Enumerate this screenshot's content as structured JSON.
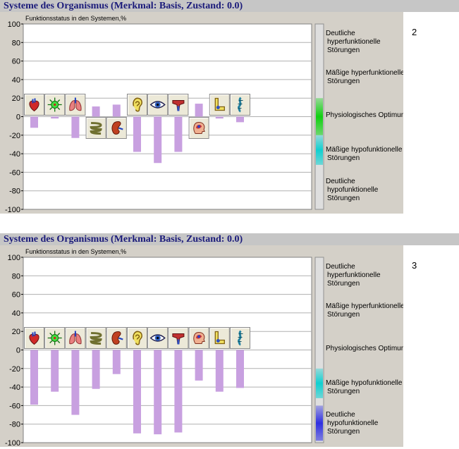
{
  "panels": [
    {
      "title": "Systeme des Organismus  (Merkmal:  Basis, Zustand:  0.0)",
      "number": "2",
      "chart_data": {
        "type": "bar",
        "ylabel": "Funktionsstatus in den Systemen,%",
        "ylim": [
          -100,
          100
        ],
        "yticks": [
          100,
          80,
          60,
          40,
          20,
          0,
          -20,
          -40,
          -60,
          -80,
          -100
        ],
        "grid": true,
        "values": [
          -12,
          -2,
          -23,
          11,
          13,
          -38,
          -50,
          -38,
          14,
          -2,
          -6
        ],
        "icon_offsets": [
          0,
          0,
          0,
          1,
          1,
          0,
          0,
          0,
          1,
          0,
          0
        ],
        "indicator": {
          "bands": [
            "green",
            "cyan"
          ]
        }
      }
    },
    {
      "title": "Systeme des Organismus  (Merkmal:  Basis, Zustand:  0.0)",
      "number": "3",
      "chart_data": {
        "type": "bar",
        "ylabel": "Funktionsstatus in den Systemen,%",
        "ylim": [
          -100,
          100
        ],
        "yticks": [
          100,
          80,
          60,
          40,
          20,
          0,
          -20,
          -40,
          -60,
          -80,
          -100
        ],
        "grid": true,
        "values": [
          -59,
          -45,
          -70,
          -42,
          -26,
          -90,
          -91,
          -89,
          -33,
          -45,
          -41
        ],
        "icon_offsets": [
          0,
          0,
          0,
          0,
          0,
          0,
          0,
          0,
          0,
          0,
          0
        ],
        "indicator": {
          "bands": [
            "cyan",
            "blue"
          ]
        }
      }
    }
  ],
  "organ_icons": [
    "heart-icon",
    "nervous-system-icon",
    "lungs-icon",
    "intestine-icon",
    "kidney-icon",
    "ear-icon",
    "eye-icon",
    "endocrine-icon",
    "head-icon",
    "joint-icon",
    "spine-icon"
  ],
  "legend": [
    [
      "Deutliche",
      "hyperfunktionelle",
      "Störungen"
    ],
    [
      "Mäßige hyperfunktionelle",
      "Störungen"
    ],
    [
      "Physiologisches Optimum"
    ],
    [
      "Mäßige hypofunktionelle",
      "Störungen"
    ],
    [
      "Deutliche",
      "hypofunktionelle",
      "Störungen"
    ]
  ],
  "colors": {
    "bar": "#c8a0e0",
    "green": "#10d010",
    "cyan": "#10d0d0",
    "blue": "#3030e0",
    "title": "#1a1a7a"
  }
}
